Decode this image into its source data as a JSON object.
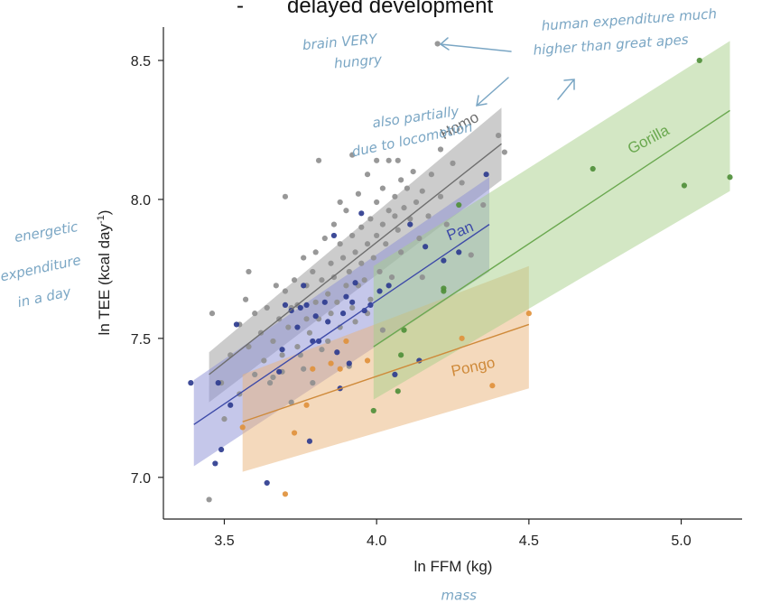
{
  "header": {
    "bullet": "-",
    "text": "delayed development"
  },
  "chart_data": {
    "type": "scatter",
    "title": "",
    "xlabel": "ln FFM (kg)",
    "ylabel_main": "ln TEE (kcal day",
    "ylabel_sup": "-1",
    "ylabel_close": ")",
    "xlim": [
      3.3,
      5.2
    ],
    "ylim": [
      6.85,
      8.62
    ],
    "xticks": [
      {
        "value": 3.5,
        "label": "3.5"
      },
      {
        "value": 4.0,
        "label": "4.0"
      },
      {
        "value": 4.5,
        "label": "4.5"
      },
      {
        "value": 5.0,
        "label": "5.0"
      }
    ],
    "yticks": [
      {
        "value": 7.0,
        "label": "7.0"
      },
      {
        "value": 7.5,
        "label": "7.5"
      },
      {
        "value": 8.0,
        "label": "8.0"
      },
      {
        "value": 8.5,
        "label": "8.5"
      }
    ],
    "series": [
      {
        "name": "Homo",
        "color": "#6e6e6e",
        "point_color": "#8f8f8f",
        "band_color": "#9a9a9a",
        "fit": {
          "x0": 3.45,
          "y0": 7.37,
          "x1": 4.41,
          "y1": 8.2
        },
        "band_lower": [
          [
            3.45,
            7.27
          ],
          [
            4.41,
            8.07
          ]
        ],
        "band_upper": [
          [
            3.45,
            7.45
          ],
          [
            4.41,
            8.33
          ]
        ],
        "label_pos": [
          4.28,
          8.25
        ],
        "label_angle": -28,
        "points": [
          [
            3.45,
            6.92
          ],
          [
            3.46,
            7.59
          ],
          [
            3.49,
            7.34
          ],
          [
            3.5,
            7.21
          ],
          [
            3.52,
            7.44
          ],
          [
            3.55,
            7.55
          ],
          [
            3.55,
            7.3
          ],
          [
            3.57,
            7.64
          ],
          [
            3.58,
            7.47
          ],
          [
            3.6,
            7.59
          ],
          [
            3.6,
            7.37
          ],
          [
            3.62,
            7.52
          ],
          [
            3.63,
            7.42
          ],
          [
            3.64,
            7.61
          ],
          [
            3.65,
            7.34
          ],
          [
            3.66,
            7.49
          ],
          [
            3.67,
            7.69
          ],
          [
            3.68,
            7.57
          ],
          [
            3.69,
            7.44
          ],
          [
            3.7,
            7.67
          ],
          [
            3.7,
            8.01
          ],
          [
            3.71,
            7.54
          ],
          [
            3.72,
            7.61
          ],
          [
            3.73,
            7.71
          ],
          [
            3.74,
            7.47
          ],
          [
            3.74,
            7.62
          ],
          [
            3.75,
            7.44
          ],
          [
            3.76,
            7.79
          ],
          [
            3.77,
            7.57
          ],
          [
            3.77,
            7.69
          ],
          [
            3.78,
            7.52
          ],
          [
            3.79,
            7.74
          ],
          [
            3.8,
            7.63
          ],
          [
            3.8,
            7.81
          ],
          [
            3.81,
            7.57
          ],
          [
            3.82,
            7.71
          ],
          [
            3.82,
            7.46
          ],
          [
            3.83,
            7.86
          ],
          [
            3.84,
            7.66
          ],
          [
            3.85,
            7.77
          ],
          [
            3.85,
            7.59
          ],
          [
            3.86,
            7.91
          ],
          [
            3.86,
            7.72
          ],
          [
            3.87,
            7.63
          ],
          [
            3.88,
            7.84
          ],
          [
            3.88,
            7.54
          ],
          [
            3.89,
            7.79
          ],
          [
            3.9,
            7.69
          ],
          [
            3.9,
            7.96
          ],
          [
            3.91,
            7.74
          ],
          [
            3.92,
            7.87
          ],
          [
            3.92,
            7.61
          ],
          [
            3.93,
            7.81
          ],
          [
            3.94,
            7.69
          ],
          [
            3.94,
            8.02
          ],
          [
            3.95,
            7.9
          ],
          [
            3.95,
            7.77
          ],
          [
            3.96,
            7.71
          ],
          [
            3.97,
            7.84
          ],
          [
            3.97,
            8.09
          ],
          [
            3.98,
            7.93
          ],
          [
            3.98,
            7.64
          ],
          [
            3.99,
            7.79
          ],
          [
            4.0,
            7.99
          ],
          [
            4.0,
            7.87
          ],
          [
            4.01,
            7.74
          ],
          [
            4.02,
            7.91
          ],
          [
            4.02,
            8.04
          ],
          [
            4.03,
            7.84
          ],
          [
            4.04,
            7.96
          ],
          [
            4.04,
            8.14
          ],
          [
            4.05,
            7.72
          ],
          [
            4.06,
            7.94
          ],
          [
            4.06,
            8.01
          ],
          [
            4.07,
            7.89
          ],
          [
            4.08,
            8.07
          ],
          [
            4.08,
            7.81
          ],
          [
            4.09,
            7.97
          ],
          [
            4.1,
            8.04
          ],
          [
            4.11,
            7.93
          ],
          [
            4.12,
            8.1
          ],
          [
            4.13,
            7.99
          ],
          [
            4.14,
            7.86
          ],
          [
            4.15,
            8.03
          ],
          [
            4.17,
            7.94
          ],
          [
            4.18,
            8.09
          ],
          [
            4.2,
            8.56
          ],
          [
            4.21,
            8.01
          ],
          [
            4.23,
            7.91
          ],
          [
            4.25,
            8.13
          ],
          [
            4.28,
            8.06
          ],
          [
            4.31,
            7.8
          ],
          [
            4.35,
            7.98
          ],
          [
            4.4,
            8.23
          ],
          [
            4.42,
            8.17
          ],
          [
            3.58,
            7.74
          ],
          [
            3.69,
            7.38
          ],
          [
            3.76,
            7.39
          ],
          [
            3.84,
            7.49
          ],
          [
            3.93,
            7.56
          ],
          [
            4.0,
            8.14
          ],
          [
            4.07,
            8.14
          ],
          [
            3.92,
            8.16
          ],
          [
            4.02,
            7.53
          ],
          [
            4.15,
            7.72
          ],
          [
            3.72,
            7.27
          ],
          [
            3.81,
            8.14
          ],
          [
            3.97,
            7.59
          ],
          [
            4.21,
            8.18
          ],
          [
            3.88,
            7.99
          ],
          [
            3.66,
            7.36
          ],
          [
            3.79,
            7.34
          ],
          [
            3.91,
            7.4
          ]
        ]
      },
      {
        "name": "Pan",
        "color": "#3d4aa8",
        "point_color": "#2e3c8f",
        "band_color": "#8b8fd6",
        "fit": {
          "x0": 3.4,
          "y0": 7.19,
          "x1": 4.37,
          "y1": 7.91
        },
        "band_lower": [
          [
            3.4,
            7.04
          ],
          [
            4.37,
            7.74
          ]
        ],
        "band_upper": [
          [
            3.4,
            7.35
          ],
          [
            4.37,
            8.08
          ]
        ],
        "label_pos": [
          4.28,
          7.87
        ],
        "label_angle": -22,
        "points": [
          [
            3.39,
            7.34
          ],
          [
            3.47,
            7.05
          ],
          [
            3.48,
            7.34
          ],
          [
            3.49,
            7.1
          ],
          [
            3.52,
            7.26
          ],
          [
            3.54,
            7.55
          ],
          [
            3.64,
            6.98
          ],
          [
            3.68,
            7.38
          ],
          [
            3.69,
            7.46
          ],
          [
            3.7,
            7.62
          ],
          [
            3.72,
            7.6
          ],
          [
            3.74,
            7.54
          ],
          [
            3.75,
            7.61
          ],
          [
            3.76,
            7.69
          ],
          [
            3.77,
            7.62
          ],
          [
            3.78,
            7.13
          ],
          [
            3.79,
            7.49
          ],
          [
            3.8,
            7.58
          ],
          [
            3.81,
            7.49
          ],
          [
            3.83,
            7.63
          ],
          [
            3.84,
            7.56
          ],
          [
            3.86,
            7.87
          ],
          [
            3.87,
            7.45
          ],
          [
            3.88,
            7.32
          ],
          [
            3.89,
            7.59
          ],
          [
            3.9,
            7.65
          ],
          [
            3.91,
            7.41
          ],
          [
            3.92,
            7.63
          ],
          [
            3.93,
            7.7
          ],
          [
            3.95,
            7.95
          ],
          [
            3.96,
            7.6
          ],
          [
            3.98,
            7.62
          ],
          [
            4.01,
            7.67
          ],
          [
            4.04,
            7.69
          ],
          [
            4.06,
            7.37
          ],
          [
            4.11,
            7.91
          ],
          [
            4.14,
            7.42
          ],
          [
            4.16,
            7.83
          ],
          [
            4.22,
            7.78
          ],
          [
            4.27,
            7.81
          ],
          [
            4.36,
            8.09
          ]
        ]
      },
      {
        "name": "Pongo",
        "color": "#cf8a3a",
        "point_color": "#e0913c",
        "band_color": "#eab47a",
        "fit": {
          "x0": 3.56,
          "y0": 7.2,
          "x1": 4.5,
          "y1": 7.55
        },
        "band_lower": [
          [
            3.56,
            7.02
          ],
          [
            4.5,
            7.32
          ]
        ],
        "band_upper": [
          [
            3.56,
            7.37
          ],
          [
            4.5,
            7.76
          ]
        ],
        "label_pos": [
          4.32,
          7.38
        ],
        "label_angle": -12,
        "points": [
          [
            3.56,
            7.18
          ],
          [
            3.7,
            6.94
          ],
          [
            3.73,
            7.16
          ],
          [
            3.77,
            7.26
          ],
          [
            3.79,
            7.39
          ],
          [
            3.85,
            7.41
          ],
          [
            3.88,
            7.39
          ],
          [
            3.9,
            7.49
          ],
          [
            3.97,
            7.42
          ],
          [
            4.28,
            7.5
          ],
          [
            4.38,
            7.33
          ],
          [
            4.5,
            7.59
          ]
        ]
      },
      {
        "name": "Gorilla",
        "color": "#6aa84f",
        "point_color": "#4f8f3a",
        "band_color": "#a8cf8a",
        "fit": {
          "x0": 3.99,
          "y0": 7.47,
          "x1": 5.16,
          "y1": 8.32
        },
        "band_lower": [
          [
            3.99,
            7.28
          ],
          [
            5.16,
            8.03
          ]
        ],
        "band_upper": [
          [
            3.99,
            7.76
          ],
          [
            5.16,
            8.57
          ]
        ],
        "label_pos": [
          4.9,
          8.2
        ],
        "label_angle": -28,
        "points": [
          [
            3.99,
            7.24
          ],
          [
            4.07,
            7.31
          ],
          [
            4.08,
            7.44
          ],
          [
            4.09,
            7.53
          ],
          [
            4.22,
            7.67
          ],
          [
            4.22,
            7.68
          ],
          [
            4.27,
            7.98
          ],
          [
            4.71,
            8.11
          ],
          [
            5.01,
            8.05
          ],
          [
            5.06,
            8.5
          ],
          [
            5.16,
            8.08
          ]
        ]
      }
    ],
    "annotations": [
      {
        "text": "brain VERY",
        "pos": [
          3.88,
          8.55
        ],
        "angle": -5
      },
      {
        "text": "hungry",
        "pos": [
          3.94,
          8.48
        ],
        "angle": -5
      },
      {
        "text": "human expenditure much",
        "pos": [
          4.83,
          8.63
        ],
        "angle": -4
      },
      {
        "text": "higher than great apes",
        "pos": [
          4.77,
          8.54
        ],
        "angle": -4
      },
      {
        "text": "also partially",
        "pos": [
          4.13,
          8.28
        ],
        "angle": -8
      },
      {
        "text": "due to locomotion",
        "pos": [
          4.12,
          8.2
        ],
        "angle": -12
      },
      {
        "text": "mass",
        "pos": [
          4.27,
          6.56
        ],
        "angle": 0
      }
    ],
    "side_notes": [
      "energetic",
      "expenditure",
      "in a day"
    ]
  }
}
